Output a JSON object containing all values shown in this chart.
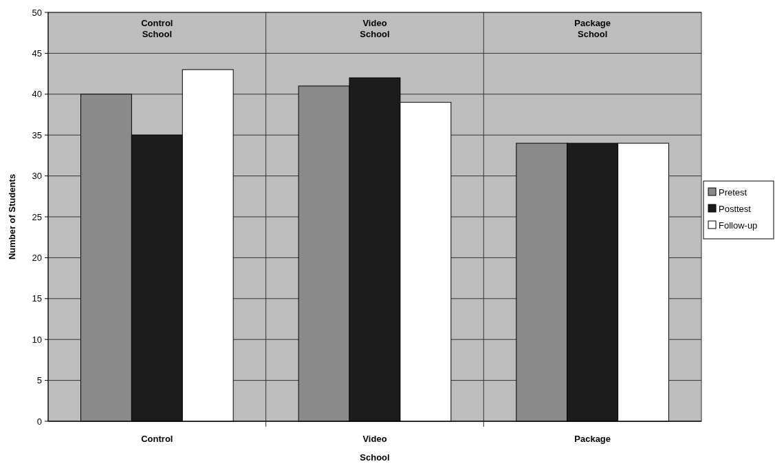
{
  "chart_data": {
    "type": "bar",
    "xlabel": "School",
    "ylabel": "Number of Students",
    "categories": [
      "Control",
      "Video",
      "Package"
    ],
    "series": [
      {
        "name": "Pretest",
        "color": "#8a8a8a",
        "values": [
          40,
          41,
          34
        ]
      },
      {
        "name": "Posttest",
        "color": "#1c1c1c",
        "values": [
          35,
          42,
          34
        ]
      },
      {
        "name": "Follow-up",
        "color": "#ffffff",
        "values": [
          43,
          39,
          34
        ]
      }
    ],
    "ylim": [
      0,
      50
    ],
    "yticks": [
      0,
      5,
      10,
      15,
      20,
      25,
      30,
      35,
      40,
      45,
      50
    ],
    "grid": "y",
    "legend": "right",
    "annotations": [
      "Control School",
      "Video School",
      "Package School"
    ]
  }
}
